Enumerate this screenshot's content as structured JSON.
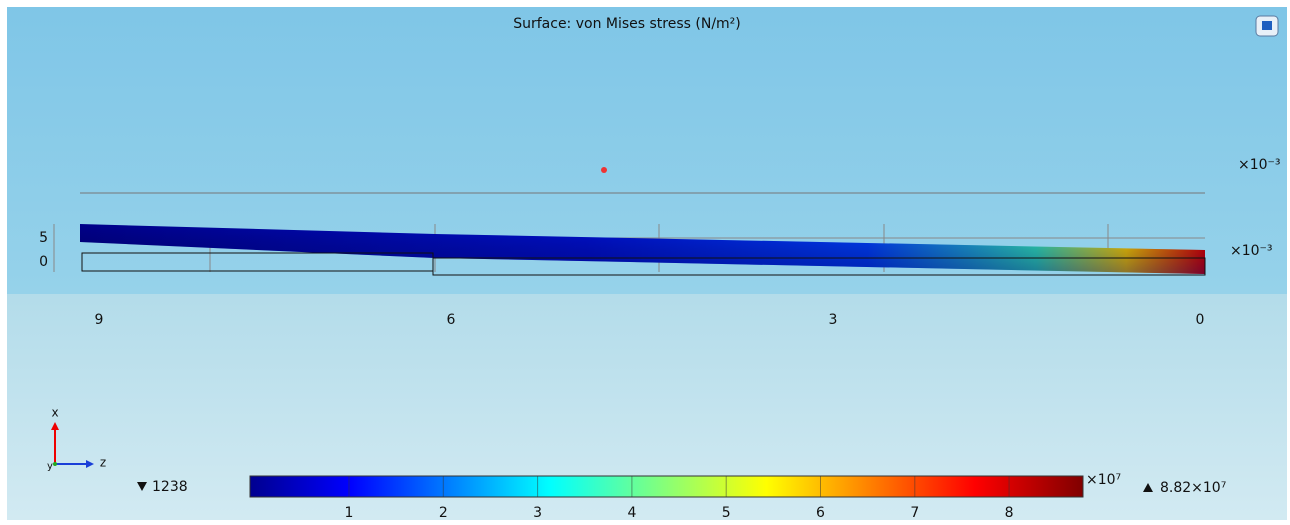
{
  "plot": {
    "title": "Surface: von Mises stress (N/m²)",
    "y_axis": {
      "multiplier_top": "×10⁻³",
      "multiplier": "×10⁻³",
      "ticks": [
        "5",
        "0"
      ]
    },
    "x_axis": {
      "ticks": [
        "9",
        "6",
        "3",
        "0"
      ]
    },
    "triad": {
      "x": "x",
      "y": "y",
      "z": "z"
    },
    "colorbar": {
      "min_label": "1238",
      "max_label": "8.82×10⁷",
      "multiplier": "×10⁷",
      "ticks": [
        "1",
        "2",
        "3",
        "4",
        "5",
        "6",
        "7",
        "8"
      ]
    }
  }
}
